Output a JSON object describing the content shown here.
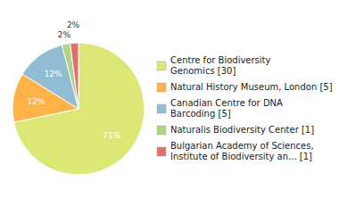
{
  "chart_data": {
    "type": "pie",
    "categories": [
      "Centre for Biodiversity\nGenomics [30]",
      "Natural History Museum, London [5]",
      "Canadian Centre for DNA\nBarcoding [5]",
      "Naturalis Biodiversity Center [1]",
      "Bulgarian Academy of Sciences,\nInstitute of Biodiversity an... [1]"
    ],
    "values": [
      71,
      12,
      12,
      2,
      2
    ],
    "value_labels": [
      "71%",
      "12%",
      "12%",
      "2%",
      "2%"
    ],
    "colors": [
      "#dce775",
      "#ffb347",
      "#90bcd4",
      "#aed581",
      "#e07070"
    ],
    "data_labels": true,
    "legend": "right"
  }
}
